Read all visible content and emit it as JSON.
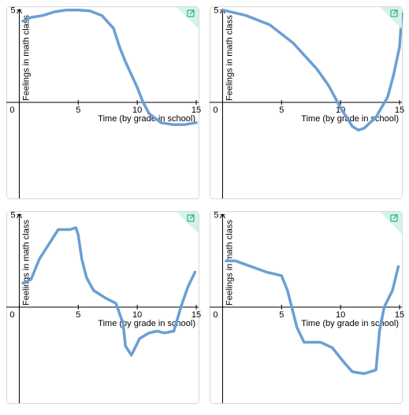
{
  "chart_data": [
    {
      "type": "line",
      "xlabel": "Time (by grade in school)",
      "ylabel": "Feelings in math class",
      "xlim": [
        -1.1,
        15.2
      ],
      "ylim": [
        -5.2,
        5.2
      ],
      "xticks": [
        0,
        5,
        10,
        15
      ],
      "yticks": [
        5
      ],
      "series": [
        {
          "color": "#6b9fd3",
          "x": [
            0.3,
            1,
            2,
            3,
            4,
            5,
            6,
            7,
            8,
            8.5,
            9,
            9.5,
            10,
            10.5,
            11,
            12,
            13,
            14,
            15
          ],
          "values": [
            4.4,
            4.6,
            4.7,
            4.9,
            5.0,
            5.0,
            4.95,
            4.7,
            4.0,
            3.0,
            2.2,
            1.5,
            0.8,
            0,
            -0.6,
            -1.1,
            -1.2,
            -1.2,
            -1.1
          ]
        }
      ]
    },
    {
      "type": "line",
      "xlabel": "Time (by grade in school)",
      "ylabel": "Feelings in math class",
      "xlim": [
        -1.1,
        15.2
      ],
      "ylim": [
        -5.2,
        5.2
      ],
      "xticks": [
        0,
        5,
        10,
        15
      ],
      "yticks": [
        5
      ],
      "series": [
        {
          "color": "#6b9fd3",
          "x": [
            0,
            2,
            4,
            6,
            8,
            9,
            10,
            11,
            11.5,
            12,
            13,
            14,
            14.5,
            15,
            15.2
          ],
          "values": [
            5.0,
            4.7,
            4.2,
            3.2,
            1.8,
            0.9,
            -0.3,
            -1.3,
            -1.5,
            -1.4,
            -0.8,
            0.3,
            1.5,
            3.0,
            4.8
          ]
        }
      ]
    },
    {
      "type": "line",
      "xlabel": "Time (by grade in school)",
      "ylabel": "Feelings in math class",
      "xlim": [
        -1.1,
        15.2
      ],
      "ylim": [
        -5.2,
        5.2
      ],
      "xticks": [
        0,
        5,
        10,
        15
      ],
      "yticks": [
        5
      ],
      "series": [
        {
          "color": "#6b9fd3",
          "x": [
            0.3,
            1,
            1.7,
            2.3,
            3,
            3.3,
            4.3,
            4.8,
            5,
            5.3,
            5.7,
            6.3,
            7.3,
            8.2,
            8.8,
            9,
            9.5,
            10.2,
            11,
            11.7,
            12.3,
            13.1,
            13.7,
            14.3,
            14.9
          ],
          "values": [
            1.3,
            1.5,
            2.6,
            3.2,
            3.9,
            4.2,
            4.2,
            4.3,
            3.9,
            2.6,
            1.6,
            0.9,
            0.5,
            0.2,
            -0.9,
            -2.1,
            -2.6,
            -1.7,
            -1.4,
            -1.3,
            -1.4,
            -1.3,
            0,
            1.1,
            1.9
          ]
        }
      ]
    },
    {
      "type": "line",
      "xlabel": "Time (by grade in school)",
      "ylabel": "Feelings in math class",
      "xlim": [
        -1.1,
        15.2
      ],
      "ylim": [
        -5.2,
        5.2
      ],
      "xticks": [
        0,
        5,
        10,
        15
      ],
      "yticks": [
        5
      ],
      "series": [
        {
          "color": "#6b9fd3",
          "x": [
            0.3,
            1.1,
            2.4,
            3.7,
            5,
            5.5,
            6.3,
            6.9,
            8.3,
            9.3,
            10.3,
            11,
            12,
            13,
            13.3,
            13.7,
            14.4,
            14.9
          ],
          "values": [
            2.5,
            2.5,
            2.2,
            1.9,
            1.7,
            0.9,
            -1.1,
            -1.9,
            -1.9,
            -2.2,
            -3.0,
            -3.5,
            -3.6,
            -3.4,
            -1.3,
            0,
            0.9,
            2.2
          ]
        }
      ]
    }
  ]
}
